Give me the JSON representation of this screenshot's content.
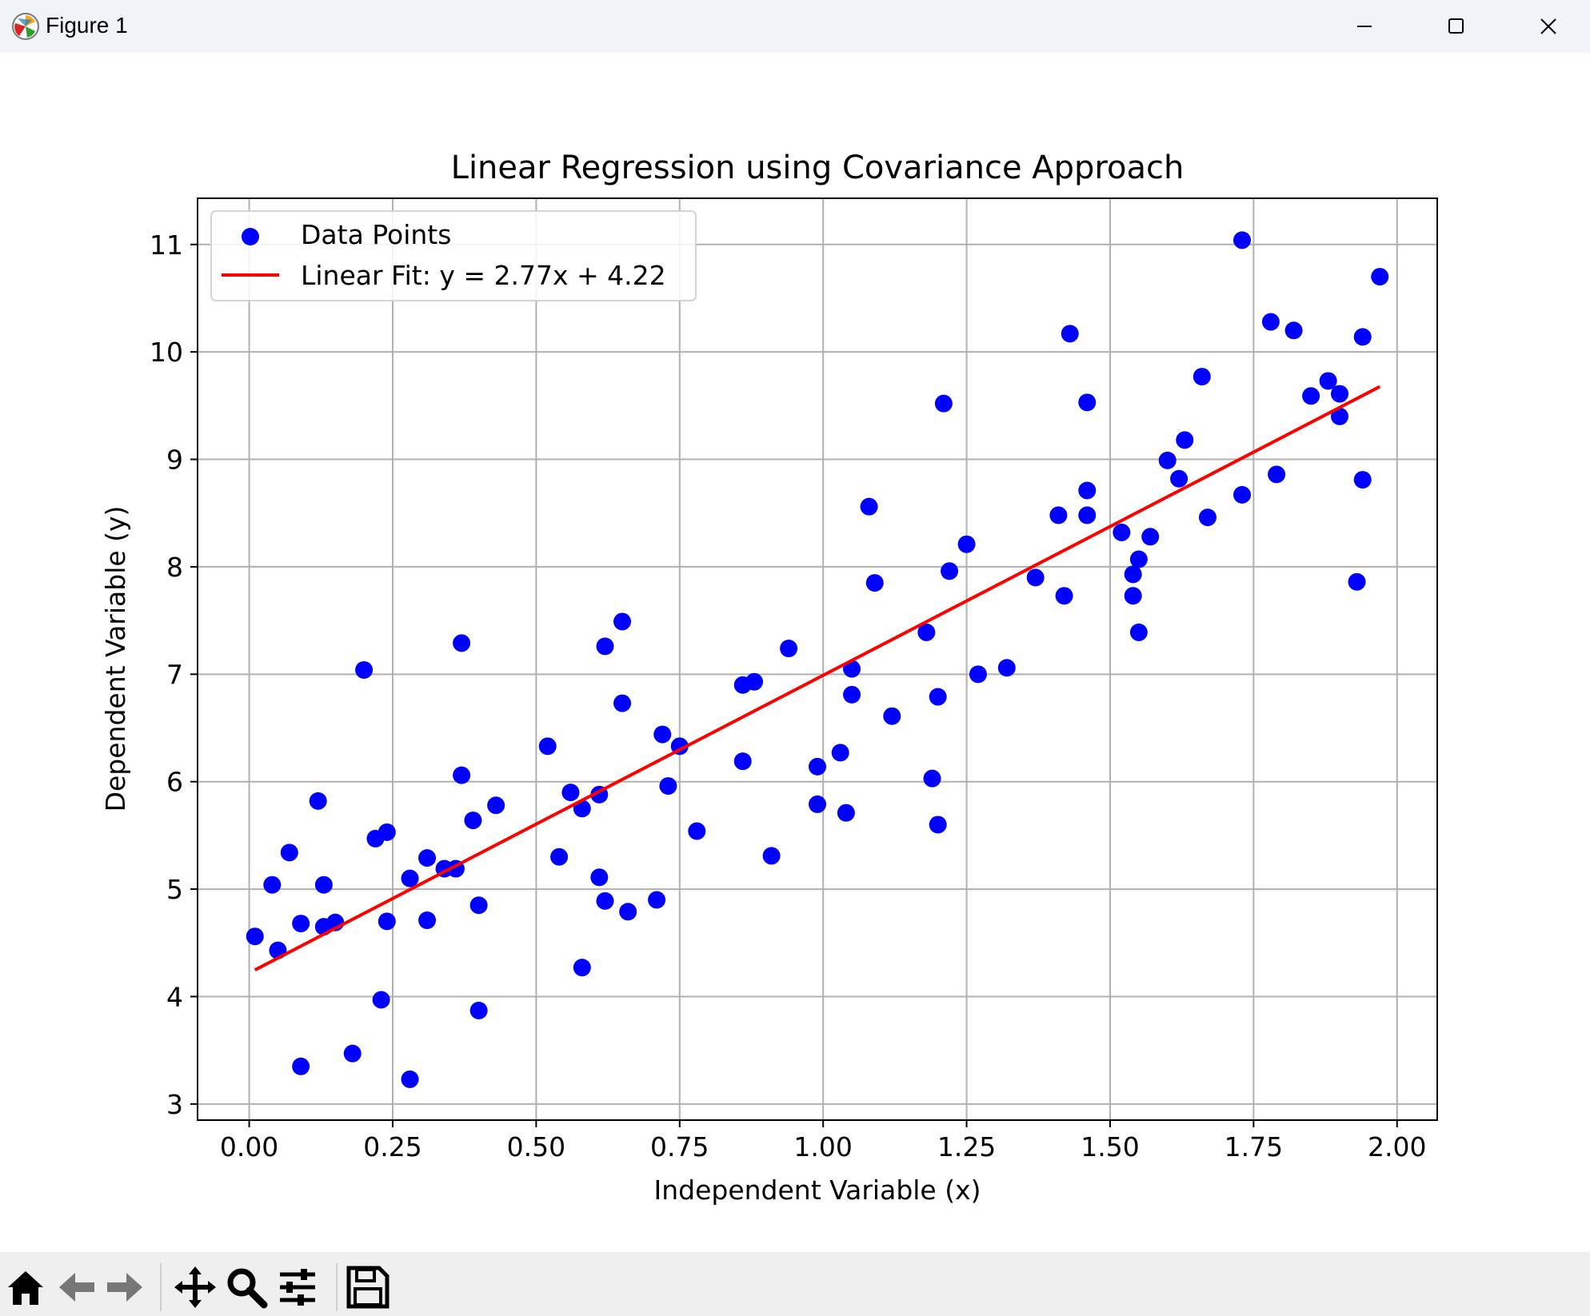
{
  "window": {
    "title": "Figure 1"
  },
  "toolbar": {
    "buttons": [
      {
        "name": "home-icon"
      },
      {
        "name": "back-arrow-icon"
      },
      {
        "name": "forward-arrow-icon"
      },
      {
        "name": "pan-icon"
      },
      {
        "name": "zoom-icon"
      },
      {
        "name": "configure-subplots-icon"
      },
      {
        "name": "save-icon"
      }
    ]
  },
  "chart_data": {
    "type": "scatter",
    "title": "Linear Regression using Covariance Approach",
    "xlabel": "Independent Variable (x)",
    "ylabel": "Dependent Variable (y)",
    "xlim": [
      -0.09,
      2.07
    ],
    "ylim": [
      2.85,
      11.43
    ],
    "xticks": [
      "0.00",
      "0.25",
      "0.50",
      "0.75",
      "1.00",
      "1.25",
      "1.50",
      "1.75",
      "2.00"
    ],
    "yticks": [
      "3",
      "4",
      "5",
      "6",
      "7",
      "8",
      "9",
      "10",
      "11"
    ],
    "grid": true,
    "legend_position": "upper-left",
    "colors": {
      "points": "#0000ff",
      "fit_line": "#ff0000",
      "grid": "#b0b0b0"
    },
    "series": [
      {
        "name": "Data Points",
        "kind": "scatter",
        "points": [
          [
            0.01,
            4.56
          ],
          [
            0.04,
            5.04
          ],
          [
            0.05,
            4.43
          ],
          [
            0.07,
            5.34
          ],
          [
            0.09,
            3.35
          ],
          [
            0.09,
            4.68
          ],
          [
            0.12,
            5.82
          ],
          [
            0.13,
            5.04
          ],
          [
            0.13,
            4.65
          ],
          [
            0.15,
            4.69
          ],
          [
            0.18,
            3.47
          ],
          [
            0.2,
            7.04
          ],
          [
            0.22,
            5.47
          ],
          [
            0.23,
            3.97
          ],
          [
            0.24,
            5.53
          ],
          [
            0.24,
            4.7
          ],
          [
            0.28,
            5.1
          ],
          [
            0.28,
            3.23
          ],
          [
            0.31,
            5.29
          ],
          [
            0.31,
            4.71
          ],
          [
            0.34,
            5.19
          ],
          [
            0.36,
            5.19
          ],
          [
            0.37,
            6.06
          ],
          [
            0.37,
            7.29
          ],
          [
            0.39,
            5.64
          ],
          [
            0.4,
            4.85
          ],
          [
            0.4,
            3.87
          ],
          [
            0.43,
            5.78
          ],
          [
            0.52,
            6.33
          ],
          [
            0.54,
            5.3
          ],
          [
            0.56,
            5.9
          ],
          [
            0.58,
            5.75
          ],
          [
            0.58,
            4.27
          ],
          [
            0.61,
            5.88
          ],
          [
            0.61,
            5.11
          ],
          [
            0.62,
            4.89
          ],
          [
            0.62,
            7.26
          ],
          [
            0.65,
            6.73
          ],
          [
            0.65,
            7.49
          ],
          [
            0.66,
            4.79
          ],
          [
            0.71,
            4.9
          ],
          [
            0.72,
            6.44
          ],
          [
            0.73,
            5.96
          ],
          [
            0.75,
            6.33
          ],
          [
            0.78,
            5.54
          ],
          [
            0.86,
            6.9
          ],
          [
            0.86,
            6.19
          ],
          [
            0.88,
            6.93
          ],
          [
            0.91,
            5.31
          ],
          [
            0.94,
            7.24
          ],
          [
            0.99,
            6.14
          ],
          [
            0.99,
            5.79
          ],
          [
            1.03,
            6.27
          ],
          [
            1.04,
            5.71
          ],
          [
            1.05,
            7.05
          ],
          [
            1.05,
            6.81
          ],
          [
            1.08,
            8.56
          ],
          [
            1.09,
            7.85
          ],
          [
            1.12,
            6.61
          ],
          [
            1.18,
            7.39
          ],
          [
            1.19,
            6.03
          ],
          [
            1.2,
            6.79
          ],
          [
            1.2,
            5.6
          ],
          [
            1.21,
            9.52
          ],
          [
            1.22,
            7.96
          ],
          [
            1.25,
            8.21
          ],
          [
            1.27,
            7.0
          ],
          [
            1.32,
            7.06
          ],
          [
            1.37,
            7.9
          ],
          [
            1.41,
            8.48
          ],
          [
            1.42,
            7.73
          ],
          [
            1.43,
            10.17
          ],
          [
            1.46,
            8.71
          ],
          [
            1.46,
            9.53
          ],
          [
            1.46,
            8.48
          ],
          [
            1.52,
            8.32
          ],
          [
            1.54,
            7.93
          ],
          [
            1.54,
            7.73
          ],
          [
            1.55,
            8.07
          ],
          [
            1.55,
            7.39
          ],
          [
            1.57,
            8.28
          ],
          [
            1.6,
            8.99
          ],
          [
            1.62,
            8.82
          ],
          [
            1.63,
            9.18
          ],
          [
            1.66,
            9.77
          ],
          [
            1.67,
            8.46
          ],
          [
            1.73,
            11.04
          ],
          [
            1.73,
            8.67
          ],
          [
            1.78,
            10.28
          ],
          [
            1.79,
            8.86
          ],
          [
            1.82,
            10.2
          ],
          [
            1.85,
            9.59
          ],
          [
            1.88,
            9.73
          ],
          [
            1.9,
            9.61
          ],
          [
            1.9,
            9.4
          ],
          [
            1.93,
            7.86
          ],
          [
            1.94,
            10.14
          ],
          [
            1.94,
            8.81
          ],
          [
            1.97,
            10.7
          ]
        ]
      },
      {
        "name": "Linear Fit: y = 2.77x + 4.22",
        "kind": "line",
        "slope": 2.77,
        "intercept": 4.22,
        "x_range": [
          0.01,
          1.97
        ]
      }
    ]
  }
}
